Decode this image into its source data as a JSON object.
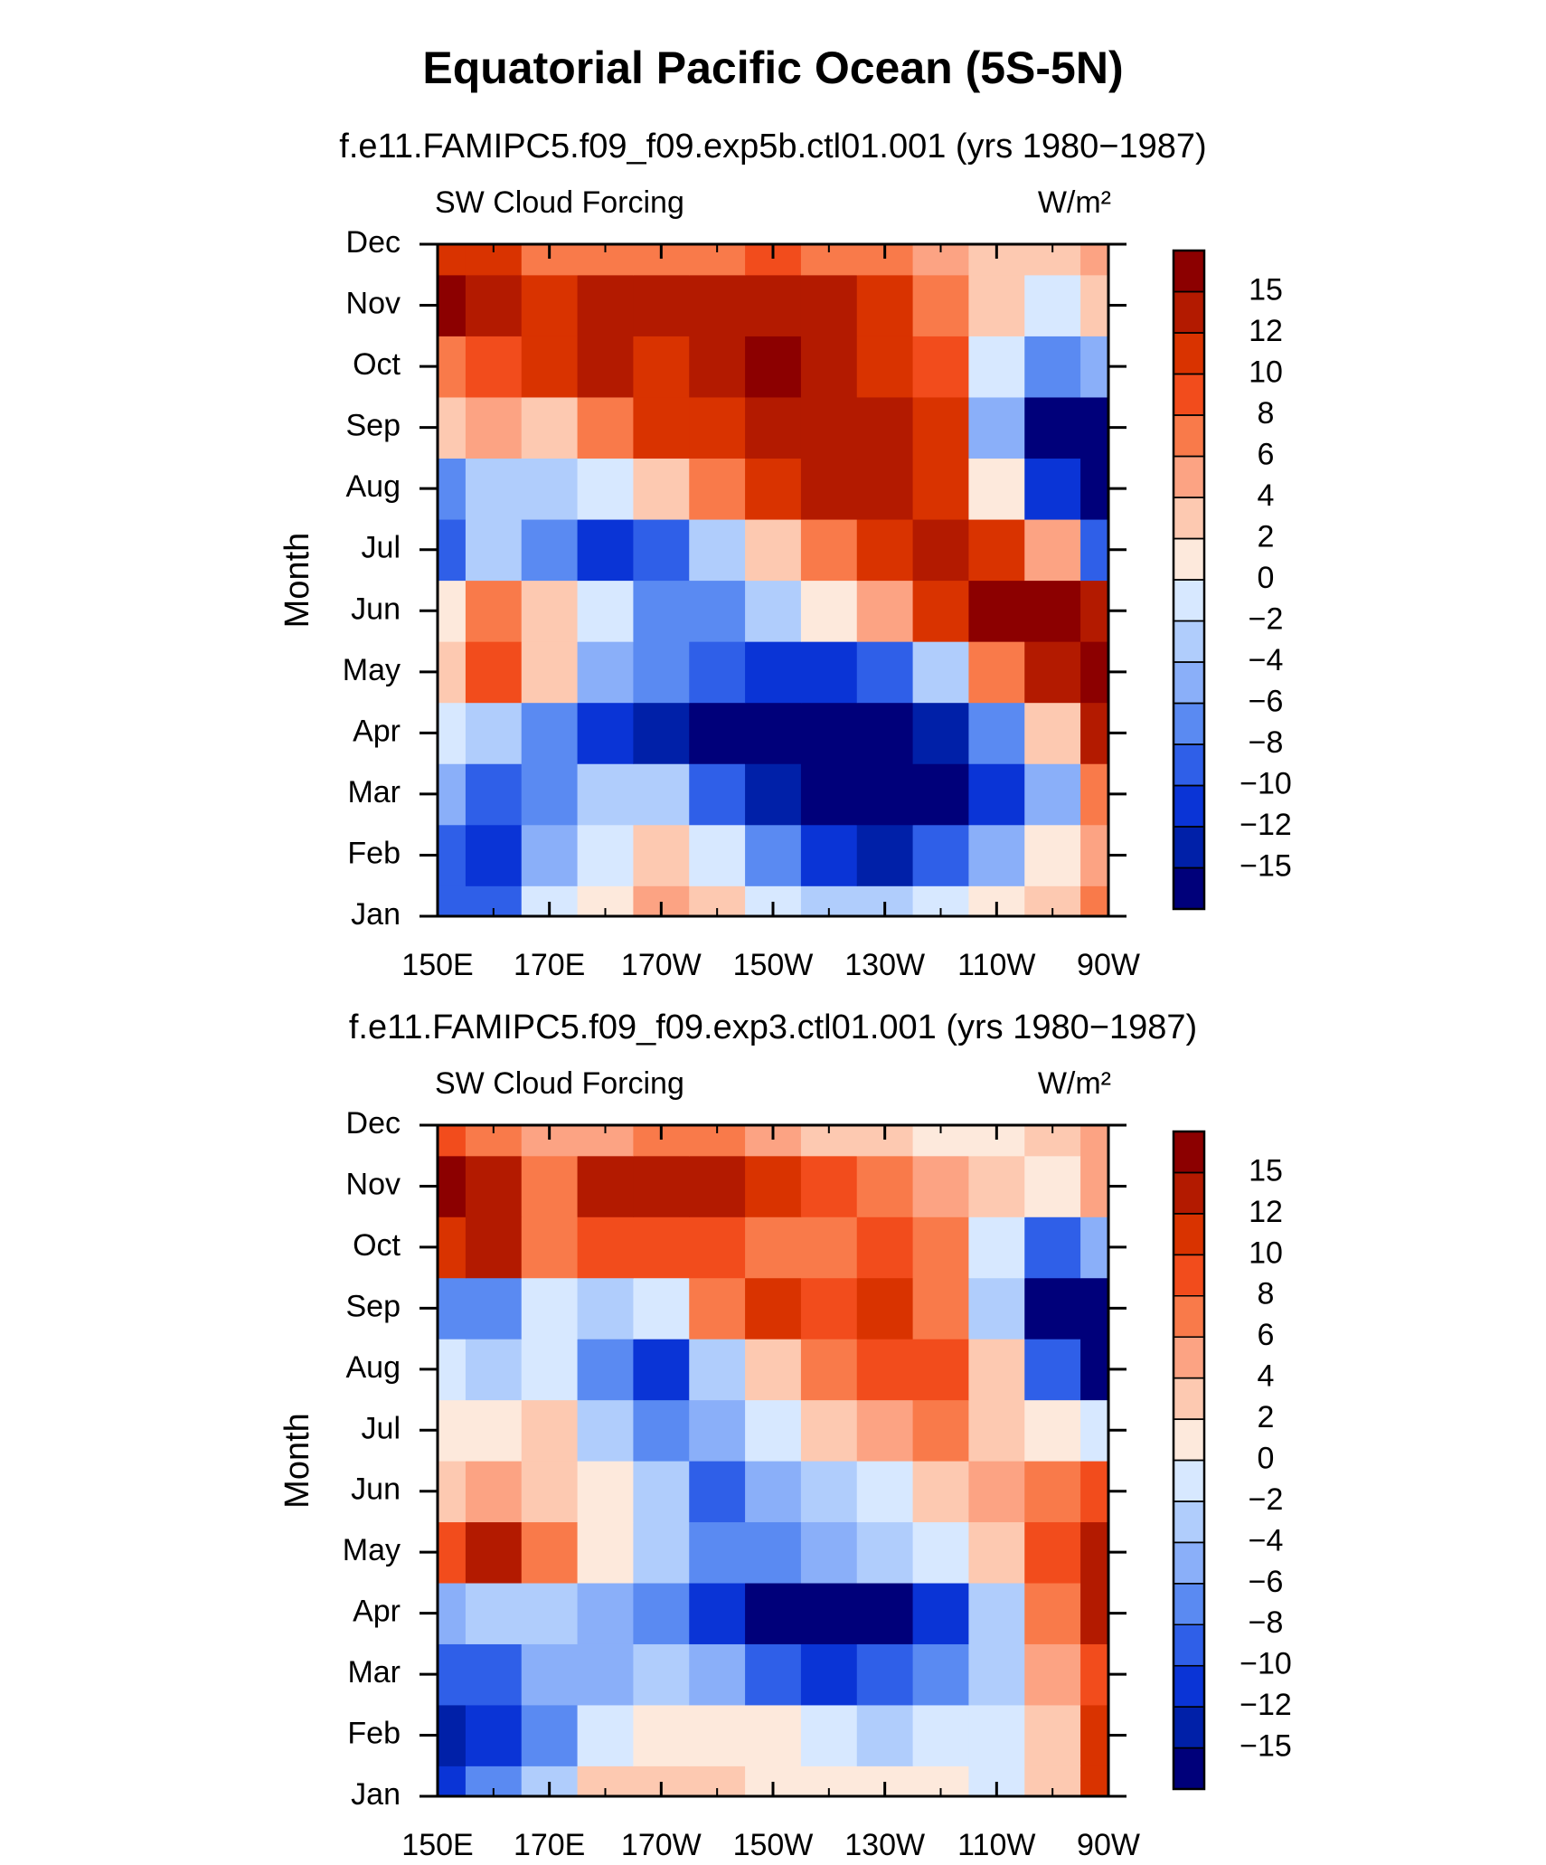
{
  "title": "Equatorial Pacific Ocean (5S-5N)",
  "chart_data": [
    {
      "type": "contour",
      "subtitle": "f.e11.FAMIPC5.f09_f09.exp5b.ctl01.001 (yrs 1980−1987)",
      "left_label": "SW Cloud Forcing",
      "units_label": "W/m²",
      "ylabel": "Month",
      "x": [
        150,
        160,
        170,
        180,
        190,
        200,
        210,
        220,
        230,
        240,
        250,
        260,
        270
      ],
      "xlim": [
        150,
        270
      ],
      "xticks": [
        {
          "value": 150,
          "label": "150E"
        },
        {
          "value": 170,
          "label": "170E"
        },
        {
          "value": 190,
          "label": "170W"
        },
        {
          "value": 210,
          "label": "150W"
        },
        {
          "value": 230,
          "label": "130W"
        },
        {
          "value": 250,
          "label": "110W"
        },
        {
          "value": 270,
          "label": "90W"
        }
      ],
      "xminor_ticks": [
        160,
        180,
        200,
        220,
        240,
        260
      ],
      "categories": [
        "Jan",
        "Feb",
        "Mar",
        "Apr",
        "May",
        "Jun",
        "Jul",
        "Aug",
        "Sep",
        "Oct",
        "Nov",
        "Dec"
      ],
      "z": [
        [
          -10,
          -9,
          -2,
          0,
          4,
          2,
          -2,
          -4,
          -4,
          -2,
          0,
          2,
          6
        ],
        [
          -10,
          -12,
          -6,
          -2,
          2,
          -2,
          -8,
          -12,
          -14,
          -10,
          -6,
          0,
          4
        ],
        [
          -6,
          -10,
          -8,
          -4,
          -4,
          -10,
          -15,
          -16,
          -16,
          -16,
          -12,
          -6,
          6
        ],
        [
          -2,
          -4,
          -8,
          -12,
          -14,
          -16,
          -16,
          -16,
          -16,
          -14,
          -8,
          2,
          14
        ],
        [
          2,
          8,
          2,
          -6,
          -8,
          -10,
          -12,
          -12,
          -10,
          -4,
          6,
          14,
          16
        ],
        [
          0,
          6,
          2,
          -2,
          -8,
          -8,
          -4,
          0,
          4,
          10,
          16,
          16,
          12
        ],
        [
          -10,
          -4,
          -8,
          -12,
          -10,
          -4,
          2,
          6,
          10,
          12,
          10,
          4,
          -10
        ],
        [
          -8,
          -4,
          -4,
          -2,
          2,
          6,
          10,
          12,
          12,
          10,
          0,
          -12,
          -16
        ],
        [
          2,
          4,
          2,
          6,
          10,
          10,
          12,
          12,
          12,
          10,
          -6,
          -16,
          -16
        ],
        [
          6,
          8,
          10,
          14,
          10,
          14,
          16,
          12,
          10,
          8,
          -2,
          -8,
          -6
        ],
        [
          16,
          12,
          10,
          14,
          12,
          14,
          12,
          12,
          10,
          6,
          2,
          -2,
          2
        ],
        [
          10,
          10,
          6,
          6,
          6,
          6,
          8,
          6,
          6,
          4,
          2,
          2,
          4
        ]
      ],
      "levels": [
        {
          "value": -15,
          "label": "−15"
        },
        {
          "value": -12,
          "label": "−12"
        },
        {
          "value": -10,
          "label": "−10"
        },
        {
          "value": -8,
          "label": "−8"
        },
        {
          "value": -6,
          "label": "−6"
        },
        {
          "value": -4,
          "label": "−4"
        },
        {
          "value": -2,
          "label": "−2"
        },
        0,
        2,
        4,
        6,
        8,
        10,
        12,
        15
      ],
      "colors": [
        "#00007a",
        "#0020a8",
        "#0a34d6",
        "#2f5fe8",
        "#5a8af2",
        "#8aaff9",
        "#b0cdfc",
        "#d7e8ff",
        "#fde9dc",
        "#fdc9b1",
        "#fca383",
        "#f97a4a",
        "#f24c1c",
        "#d93300",
        "#b31a00",
        "#8c0000"
      ]
    },
    {
      "type": "contour",
      "subtitle": "f.e11.FAMIPC5.f09_f09.exp3.ctl01.001 (yrs 1980−1987)",
      "left_label": "SW Cloud Forcing",
      "units_label": "W/m²",
      "ylabel": "Month",
      "x": [
        150,
        160,
        170,
        180,
        190,
        200,
        210,
        220,
        230,
        240,
        250,
        260,
        270
      ],
      "xlim": [
        150,
        270
      ],
      "xticks": [
        {
          "value": 150,
          "label": "150E"
        },
        {
          "value": 170,
          "label": "170E"
        },
        {
          "value": 190,
          "label": "170W"
        },
        {
          "value": 210,
          "label": "150W"
        },
        {
          "value": 230,
          "label": "130W"
        },
        {
          "value": 250,
          "label": "110W"
        },
        {
          "value": 270,
          "label": "90W"
        }
      ],
      "xminor_ticks": [
        160,
        180,
        200,
        220,
        240,
        260
      ],
      "categories": [
        "Jan",
        "Feb",
        "Mar",
        "Apr",
        "May",
        "Jun",
        "Jul",
        "Aug",
        "Sep",
        "Oct",
        "Nov",
        "Dec"
      ],
      "z": [
        [
          -12,
          -8,
          -4,
          2,
          2,
          2,
          0,
          0,
          0,
          0,
          -2,
          2,
          10
        ],
        [
          -15,
          -12,
          -8,
          -2,
          0,
          0,
          0,
          -2,
          -4,
          -2,
          -2,
          2,
          10
        ],
        [
          -10,
          -10,
          -6,
          -6,
          -4,
          -6,
          -10,
          -12,
          -10,
          -8,
          -4,
          4,
          8
        ],
        [
          -6,
          -4,
          -4,
          -6,
          -8,
          -12,
          -16,
          -16,
          -16,
          -12,
          -4,
          6,
          12
        ],
        [
          8,
          14,
          6,
          0,
          -4,
          -8,
          -8,
          -6,
          -4,
          -2,
          2,
          8,
          14
        ],
        [
          2,
          4,
          2,
          0,
          -4,
          -10,
          -6,
          -4,
          -2,
          2,
          4,
          6,
          8
        ],
        [
          0,
          0,
          2,
          -4,
          -8,
          -6,
          -2,
          2,
          4,
          6,
          2,
          0,
          -2
        ],
        [
          -2,
          -4,
          -2,
          -8,
          -12,
          -4,
          2,
          6,
          8,
          8,
          2,
          -10,
          -16
        ],
        [
          -8,
          -8,
          -2,
          -4,
          -2,
          6,
          10,
          8,
          10,
          6,
          -4,
          -16,
          -16
        ],
        [
          10,
          12,
          6,
          8,
          8,
          8,
          6,
          6,
          8,
          6,
          -2,
          -10,
          -6
        ],
        [
          16,
          12,
          6,
          12,
          12,
          14,
          10,
          8,
          6,
          4,
          2,
          0,
          4
        ],
        [
          8,
          6,
          4,
          4,
          6,
          6,
          4,
          2,
          2,
          0,
          0,
          2,
          4
        ]
      ],
      "levels": [
        {
          "value": -15,
          "label": "−15"
        },
        {
          "value": -12,
          "label": "−12"
        },
        {
          "value": -10,
          "label": "−10"
        },
        {
          "value": -8,
          "label": "−8"
        },
        {
          "value": -6,
          "label": "−6"
        },
        {
          "value": -4,
          "label": "−4"
        },
        {
          "value": -2,
          "label": "−2"
        },
        0,
        2,
        4,
        6,
        8,
        10,
        12,
        15
      ],
      "colors": [
        "#00007a",
        "#0020a8",
        "#0a34d6",
        "#2f5fe8",
        "#5a8af2",
        "#8aaff9",
        "#b0cdfc",
        "#d7e8ff",
        "#fde9dc",
        "#fdc9b1",
        "#fca383",
        "#f97a4a",
        "#f24c1c",
        "#d93300",
        "#b31a00",
        "#8c0000"
      ]
    }
  ]
}
